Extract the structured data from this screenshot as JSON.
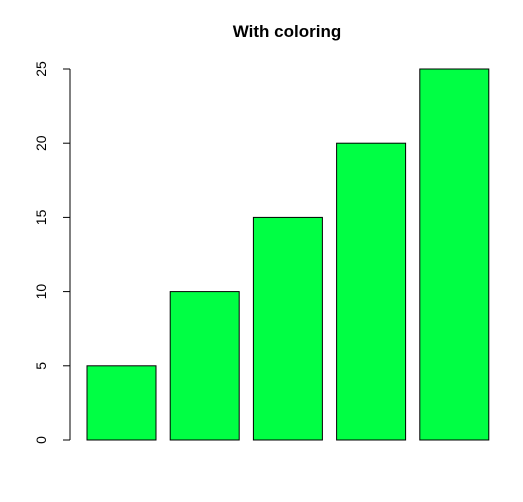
{
  "chart_data": {
    "type": "bar",
    "title": "With coloring",
    "xlabel": "",
    "ylabel": "",
    "categories": [
      "",
      "",
      "",
      "",
      ""
    ],
    "values": [
      5,
      10,
      15,
      20,
      25
    ],
    "ylim": [
      0,
      25
    ],
    "yticks": [
      0,
      5,
      10,
      15,
      20,
      25
    ],
    "bar_color": "#00FF44",
    "border_color": "#000000",
    "grid": false,
    "legend": "none"
  }
}
